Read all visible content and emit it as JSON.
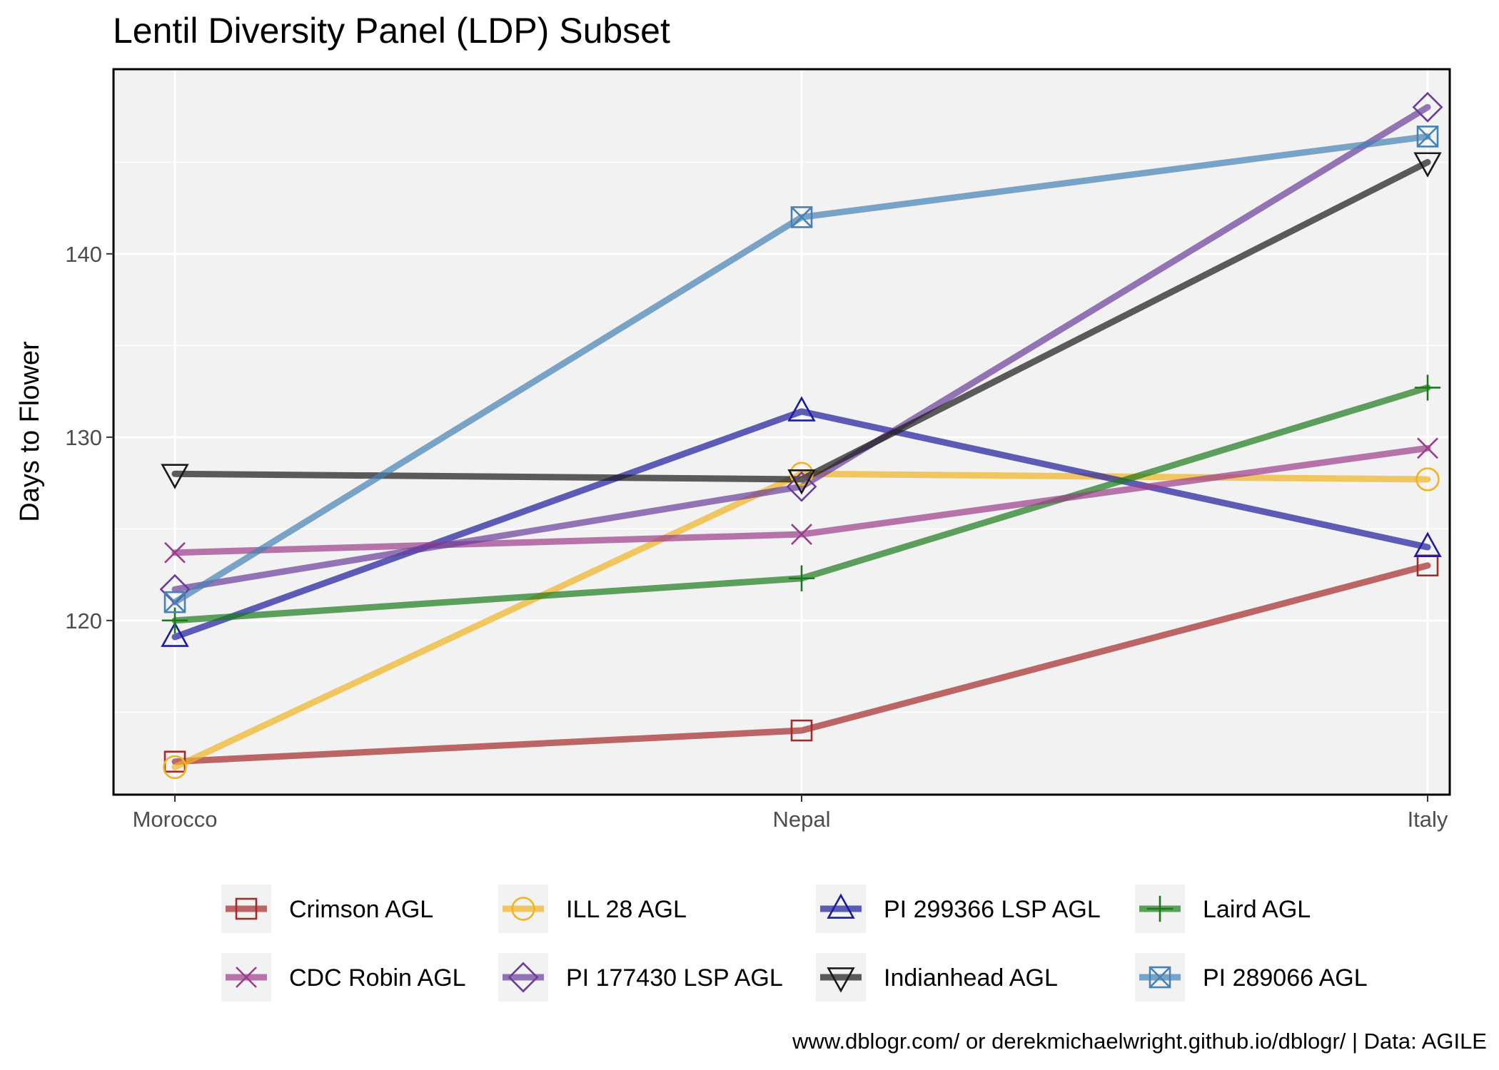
{
  "chart_data": {
    "type": "line",
    "title": "Lentil Diversity Panel (LDP) Subset",
    "xlabel": "",
    "ylabel": "Days to Flower",
    "categories": [
      "Morocco",
      "Nepal",
      "Italy"
    ],
    "yticks": [
      120,
      130,
      140
    ],
    "ylim": [
      110.5,
      150
    ],
    "grid": true,
    "legend_position": "bottom",
    "caption": "www.dblogr.com/ or derekmichaelwright.github.io/dblogr/ | Data: AGILE",
    "series": [
      {
        "name": "Crimson AGL",
        "color": "#a52a2a",
        "marker": "square",
        "values": [
          112.3,
          114.0,
          123.0
        ]
      },
      {
        "name": "ILL 28 AGL",
        "color": "#f0b323",
        "marker": "circle",
        "values": [
          112.0,
          128.0,
          127.7
        ]
      },
      {
        "name": "PI 299366 LSP AGL",
        "color": "#1c1c9c",
        "marker": "triangle-up",
        "values": [
          119.1,
          131.4,
          124.0
        ]
      },
      {
        "name": "Laird AGL",
        "color": "#1c7a1c",
        "marker": "plus",
        "values": [
          120.0,
          122.3,
          132.7
        ]
      },
      {
        "name": "CDC Robin AGL",
        "color": "#9b3d8a",
        "marker": "x",
        "values": [
          123.7,
          124.7,
          129.4
        ]
      },
      {
        "name": "PI 177430 LSP AGL",
        "color": "#6a3d9a",
        "marker": "diamond",
        "values": [
          121.7,
          127.3,
          148.0
        ]
      },
      {
        "name": "Indianhead AGL",
        "color": "#1a1a1a",
        "marker": "triangle-down",
        "values": [
          128.0,
          127.7,
          145.0
        ]
      },
      {
        "name": "PI 289066 AGL",
        "color": "#4682b4",
        "marker": "square-x",
        "values": [
          121.0,
          142.0,
          146.4
        ]
      }
    ]
  }
}
